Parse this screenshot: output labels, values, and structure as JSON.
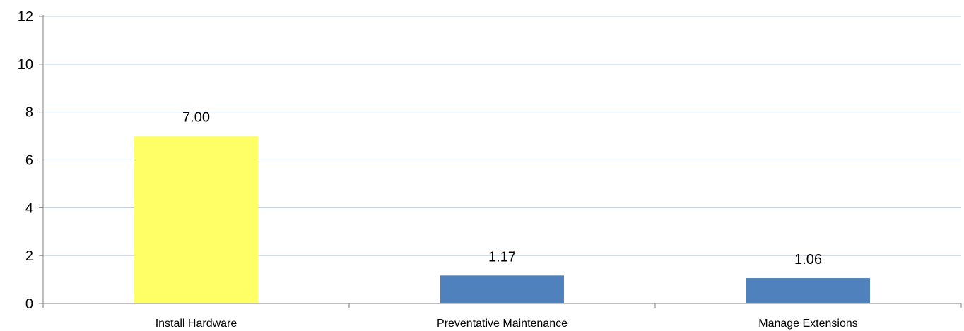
{
  "chart_data": {
    "type": "bar",
    "categories": [
      "Install Hardware",
      "Preventative Maintenance",
      "Manage Extensions"
    ],
    "values": [
      7.0,
      1.17,
      1.06
    ],
    "data_labels": [
      "7.00",
      "1.17",
      "1.06"
    ],
    "bar_colors": [
      "#ffff66",
      "#4f81bd",
      "#4f81bd"
    ],
    "ylim": [
      0,
      12
    ],
    "yticks": [
      0,
      2,
      4,
      6,
      8,
      10,
      12
    ],
    "grid": true,
    "grid_color": "#b9c9dd",
    "axis_color": "#7f7f7f",
    "title": "",
    "xlabel": "",
    "ylabel": ""
  }
}
